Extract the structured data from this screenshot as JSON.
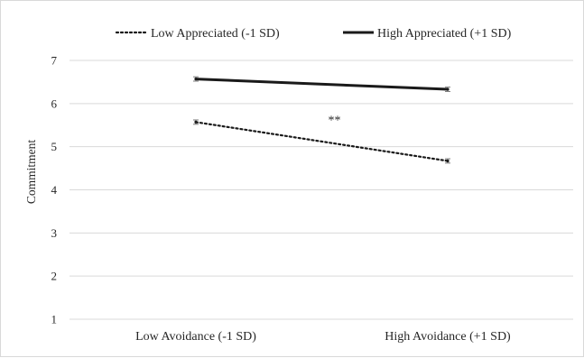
{
  "chart_data": {
    "type": "line",
    "title": "",
    "xlabel": "",
    "ylabel": "Commitment",
    "categories": [
      "Low Avoidance (-1 SD)",
      "High Avoidance (+1 SD)"
    ],
    "ylim": [
      1,
      7
    ],
    "yticks": [
      "1",
      "2",
      "3",
      "4",
      "5",
      "6",
      "7"
    ],
    "grid": true,
    "legend_position": "top",
    "series": [
      {
        "name": "Low Appreciated (-1 SD)",
        "values": [
          5.57,
          4.67
        ],
        "error": [
          0.05,
          0.05
        ],
        "line_style": "dotted",
        "color": "#1a1a1a"
      },
      {
        "name": "High Appreciated (+1 SD)",
        "values": [
          6.57,
          6.33
        ],
        "error": [
          0.05,
          0.05
        ],
        "line_style": "solid",
        "color": "#1a1a1a"
      }
    ],
    "annotations": [
      {
        "text": "**",
        "x": 0.55,
        "y": 5.57
      }
    ]
  }
}
